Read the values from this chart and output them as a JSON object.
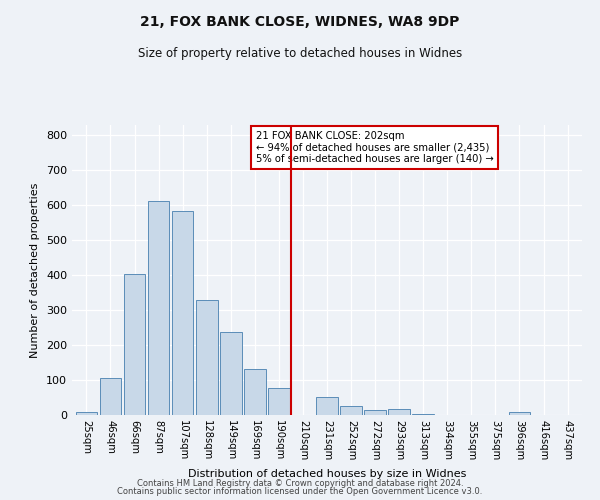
{
  "title": "21, FOX BANK CLOSE, WIDNES, WA8 9DP",
  "subtitle": "Size of property relative to detached houses in Widnes",
  "xlabel": "Distribution of detached houses by size in Widnes",
  "ylabel": "Number of detached properties",
  "bar_labels": [
    "25sqm",
    "46sqm",
    "66sqm",
    "87sqm",
    "107sqm",
    "128sqm",
    "149sqm",
    "169sqm",
    "190sqm",
    "210sqm",
    "231sqm",
    "252sqm",
    "272sqm",
    "293sqm",
    "313sqm",
    "334sqm",
    "355sqm",
    "375sqm",
    "396sqm",
    "416sqm",
    "437sqm"
  ],
  "bar_values": [
    8,
    106,
    403,
    612,
    585,
    328,
    237,
    133,
    77,
    0,
    51,
    25,
    14,
    16,
    4,
    0,
    0,
    0,
    8,
    0,
    0
  ],
  "bar_color": "#c8d8e8",
  "bar_edge_color": "#5b8db8",
  "vline_x": 9.5,
  "vline_color": "#cc0000",
  "annotation_title": "21 FOX BANK CLOSE: 202sqm",
  "annotation_line1": "← 94% of detached houses are smaller (2,435)",
  "annotation_line2": "5% of semi-detached houses are larger (140) →",
  "annotation_box_color": "#ffffff",
  "annotation_box_edge": "#cc0000",
  "ylim": [
    0,
    830
  ],
  "yticks": [
    0,
    100,
    200,
    300,
    400,
    500,
    600,
    700,
    800
  ],
  "bg_color": "#eef2f7",
  "grid_color": "#ffffff",
  "footer1": "Contains HM Land Registry data © Crown copyright and database right 2024.",
  "footer2": "Contains public sector information licensed under the Open Government Licence v3.0."
}
